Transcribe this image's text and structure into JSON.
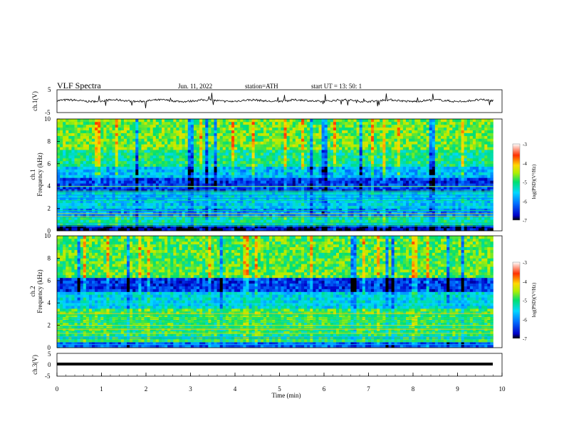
{
  "header": {
    "title": "VLF  Spectra",
    "date": "Jun. 11, 2022",
    "station": "station=ATH",
    "start": "start  UT  =    13: 50: 1"
  },
  "chart_data": [
    {
      "type": "line",
      "panel": "ch1-waveform",
      "ylabel": "ch.1(V)",
      "ylim": [
        -5,
        5
      ],
      "y_ticks": [
        "5",
        "-5"
      ],
      "baseline_value": 0.2,
      "xlim": [
        0,
        10
      ]
    },
    {
      "type": "heatmap",
      "panel": "ch1-spectrogram",
      "ylabel": "ch.1\nFrequency (kHz)",
      "ylabel_line1": "ch.1",
      "ylabel_line2": "Frequency  (kHz)",
      "ylim": [
        0,
        10
      ],
      "y_ticks": [
        "0",
        "2",
        "4",
        "6",
        "8",
        "10"
      ],
      "xlim": [
        0,
        9.8
      ],
      "colorbar": {
        "label": "log(PSD)(V²/Hz)",
        "range": [
          -7,
          -3
        ],
        "ticks": [
          "-3",
          "-4",
          "-5",
          "-6",
          "-7"
        ]
      },
      "bands": [
        {
          "f_range": [
            0,
            0.5
          ],
          "log_psd": -6.8
        },
        {
          "f_range": [
            0.5,
            1.2
          ],
          "log_psd": -5.2
        },
        {
          "f_range": [
            1.2,
            2.0
          ],
          "log_psd": -6.0
        },
        {
          "f_range": [
            2.0,
            3.4
          ],
          "log_psd": -5.6
        },
        {
          "f_range": [
            3.4,
            4.8
          ],
          "log_psd": -6.4
        },
        {
          "f_range": [
            4.8,
            5.8
          ],
          "log_psd": -5.7
        },
        {
          "f_range": [
            5.8,
            7.2
          ],
          "log_psd": -5.1
        },
        {
          "f_range": [
            7.2,
            10
          ],
          "log_psd": -4.7
        }
      ]
    },
    {
      "type": "heatmap",
      "panel": "ch2-spectrogram",
      "ylabel": "ch.2\nFrequency (kHz)",
      "ylabel_line1": "ch.2",
      "ylabel_line2": "Frequency  (kHz)",
      "ylim": [
        0,
        10
      ],
      "y_ticks": [
        "0",
        "2",
        "4",
        "6",
        "8",
        "10"
      ],
      "xlim": [
        0,
        9.8
      ],
      "colorbar": {
        "label": "log(PSD)(V²/Hz)",
        "range": [
          -7,
          -3
        ],
        "ticks": [
          "-3",
          "-4",
          "-5",
          "-6",
          "-7"
        ]
      },
      "bands": [
        {
          "f_range": [
            0,
            0.6
          ],
          "log_psd": -6.2
        },
        {
          "f_range": [
            0.6,
            2.4
          ],
          "log_psd": -5.0
        },
        {
          "f_range": [
            2.4,
            3.6
          ],
          "log_psd": -4.9
        },
        {
          "f_range": [
            3.6,
            5.0
          ],
          "log_psd": -5.5
        },
        {
          "f_range": [
            5.0,
            6.2
          ],
          "log_psd": -6.4
        },
        {
          "f_range": [
            6.2,
            10
          ],
          "log_psd": -4.8
        }
      ]
    },
    {
      "type": "line",
      "panel": "ch3-waveform",
      "ylabel": "ch.3(V)",
      "ylim": [
        -5,
        5
      ],
      "y_ticks": [
        "5",
        "0",
        "-5"
      ],
      "baseline_value": -0.5,
      "xlim": [
        0,
        10
      ]
    }
  ],
  "x_axis": {
    "label": "Time  (min)",
    "ticks": [
      "0",
      "1",
      "2",
      "3",
      "4",
      "5",
      "6",
      "7",
      "8",
      "9",
      "10"
    ],
    "range": [
      0,
      10
    ]
  },
  "colors": {
    "waveform": "#000000",
    "colormap": [
      "#000000",
      "#0000c8",
      "#0070ff",
      "#00d8ff",
      "#00e070",
      "#b0ee00",
      "#ffd800",
      "#ff3000",
      "#ffffff"
    ]
  }
}
